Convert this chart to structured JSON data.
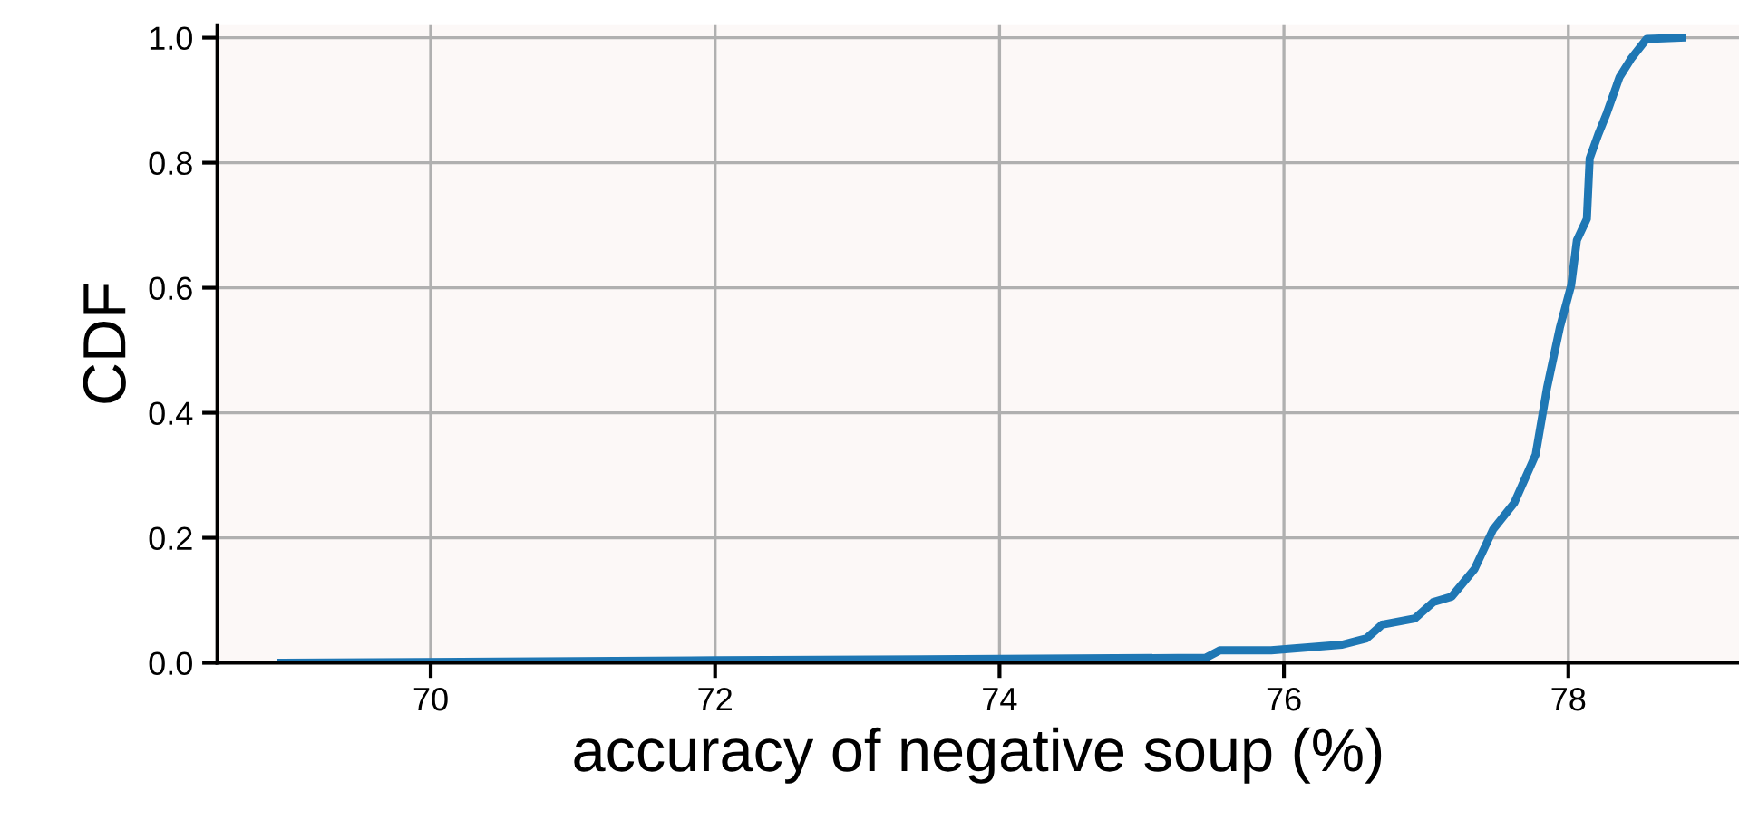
{
  "chart_data": {
    "type": "line",
    "xlabel": "accuracy of negative soup (%)",
    "ylabel": "CDF",
    "x": [
      68.95,
      72.0,
      75.45,
      75.55,
      75.91,
      76.41,
      76.58,
      76.69,
      76.92,
      77.05,
      77.18,
      77.34,
      77.47,
      77.62,
      77.77,
      77.85,
      77.94,
      78.02,
      78.06,
      78.13,
      78.15,
      78.21,
      78.27,
      78.36,
      78.44,
      78.55,
      78.8
    ],
    "series": [
      {
        "color": "#1f77b4",
        "values": [
          0.0,
          0.004,
          0.008,
          0.02,
          0.02,
          0.029,
          0.039,
          0.061,
          0.071,
          0.097,
          0.106,
          0.15,
          0.213,
          0.256,
          0.333,
          0.44,
          0.536,
          0.604,
          0.676,
          0.71,
          0.807,
          0.845,
          0.879,
          0.937,
          0.966,
          0.998,
          1.0
        ]
      }
    ],
    "xlim": [
      68.5,
      79.2
    ],
    "ylim": [
      0,
      1.02
    ],
    "xticks": [
      70,
      72,
      74,
      76,
      78
    ],
    "yticks": [
      {
        "value": 0,
        "label": "0.0"
      },
      {
        "value": 0.2,
        "label": "0.2"
      },
      {
        "value": 0.4,
        "label": "0.4"
      },
      {
        "value": 0.6,
        "label": "0.6"
      },
      {
        "value": 0.8,
        "label": "0.8"
      },
      {
        "value": 1.0,
        "label": "1.0"
      }
    ],
    "grid": true,
    "legend": false
  }
}
